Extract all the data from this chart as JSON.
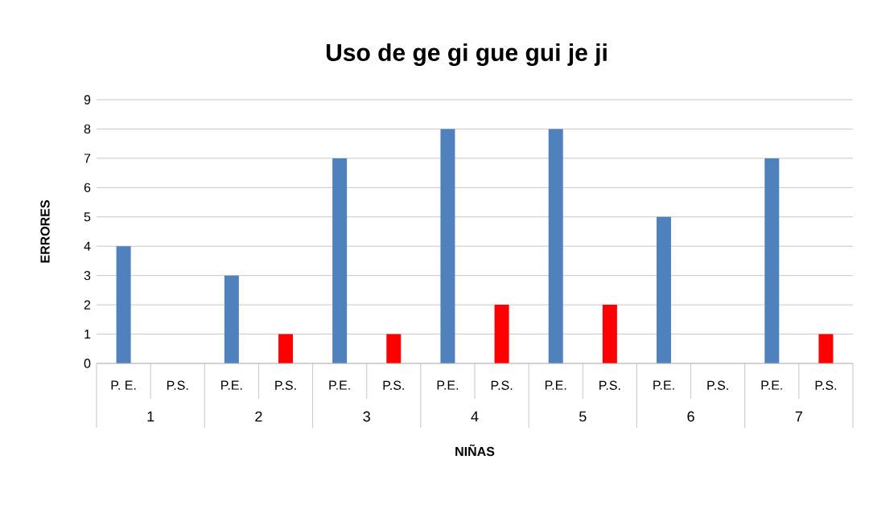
{
  "chart_data": {
    "type": "bar",
    "title": "Uso de ge gi gue gui je ji",
    "xlabel": "NIÑAS",
    "ylabel": "ERRORES",
    "categories": [
      "P. E.",
      "P.S.",
      "P.E.",
      "P.S.",
      "P.E.",
      "P.S.",
      "P.E.",
      "P.S.",
      "P.E.",
      "P.S.",
      "P.E.",
      "P.S.",
      "P.E.",
      "P.S."
    ],
    "values": [
      4,
      0,
      3,
      1,
      7,
      1,
      8,
      2,
      8,
      2,
      5,
      0,
      7,
      1
    ],
    "colors": [
      "#4f81bd",
      "#ff0000",
      "#4f81bd",
      "#ff0000",
      "#4f81bd",
      "#ff0000",
      "#4f81bd",
      "#ff0000",
      "#4f81bd",
      "#ff0000",
      "#4f81bd",
      "#ff0000",
      "#4f81bd",
      "#ff0000"
    ],
    "ylim": [
      0,
      9
    ],
    "yticks": [
      0,
      1,
      2,
      3,
      4,
      5,
      6,
      7,
      8,
      9
    ],
    "grid": "y",
    "annotations": [
      "1",
      "2",
      "3",
      "4",
      "5",
      "6",
      "7"
    ]
  }
}
